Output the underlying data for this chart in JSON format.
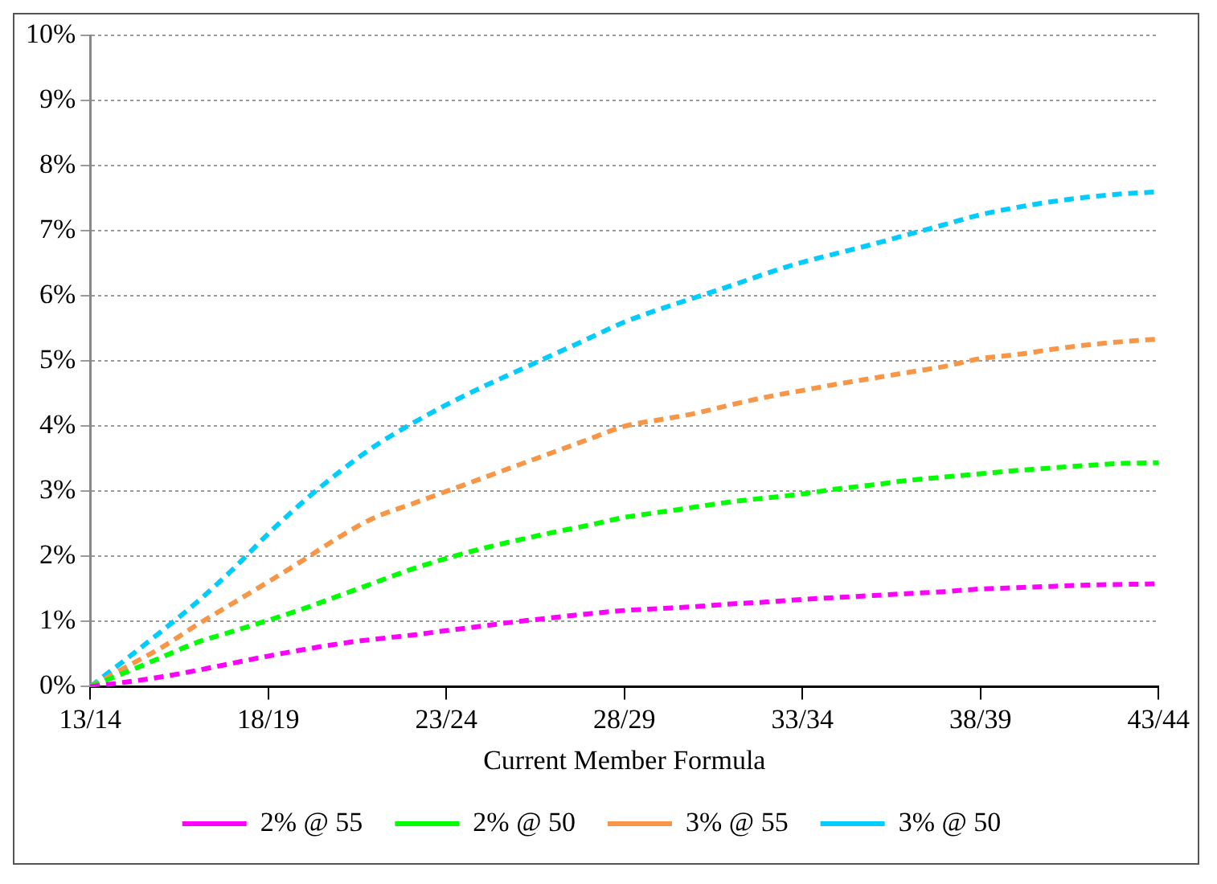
{
  "chart_data": {
    "type": "line",
    "xlabel": "Current Member Formula",
    "categories": [
      "13/14",
      null,
      null,
      null,
      null,
      "18/19",
      null,
      null,
      null,
      null,
      "23/24",
      null,
      null,
      null,
      null,
      "28/29",
      null,
      null,
      null,
      null,
      "33/34",
      null,
      null,
      null,
      null,
      "38/39",
      null,
      null,
      null,
      null,
      "43/44"
    ],
    "ylim": [
      0,
      10
    ],
    "yticks": [
      {
        "value": 0,
        "label": "0%"
      },
      {
        "value": 1,
        "label": "1%"
      },
      {
        "value": 2,
        "label": "2%"
      },
      {
        "value": 3,
        "label": "3%"
      },
      {
        "value": 4,
        "label": "4%"
      },
      {
        "value": 5,
        "label": "5%"
      },
      {
        "value": 6,
        "label": "6%"
      },
      {
        "value": 7,
        "label": "7%"
      },
      {
        "value": 8,
        "label": "8%"
      },
      {
        "value": 9,
        "label": "9%"
      },
      {
        "value": 10,
        "label": "10%"
      }
    ],
    "series": [
      {
        "name": "2% @ 55",
        "color": "#ff00ff",
        "values": [
          0,
          0.07,
          0.15,
          0.25,
          0.36,
          0.47,
          0.57,
          0.66,
          0.73,
          0.79,
          0.86,
          0.93,
          1.0,
          1.06,
          1.12,
          1.17,
          1.2,
          1.23,
          1.27,
          1.3,
          1.34,
          1.37,
          1.4,
          1.43,
          1.46,
          1.5,
          1.52,
          1.54,
          1.56,
          1.57,
          1.58
        ]
      },
      {
        "name": "2% @ 50",
        "color": "#00ff00",
        "values": [
          0,
          0.22,
          0.45,
          0.68,
          0.85,
          1.02,
          1.2,
          1.4,
          1.6,
          1.8,
          1.97,
          2.12,
          2.25,
          2.37,
          2.48,
          2.6,
          2.68,
          2.76,
          2.84,
          2.9,
          2.96,
          3.04,
          3.1,
          3.17,
          3.22,
          3.27,
          3.32,
          3.36,
          3.4,
          3.43,
          3.44
        ]
      },
      {
        "name": "3% @ 55",
        "color": "#f79646",
        "values": [
          0,
          0.3,
          0.6,
          0.95,
          1.28,
          1.61,
          1.95,
          2.3,
          2.6,
          2.8,
          3.0,
          3.2,
          3.4,
          3.6,
          3.8,
          4.0,
          4.1,
          4.2,
          4.33,
          4.45,
          4.55,
          4.65,
          4.74,
          4.83,
          4.92,
          5.04,
          5.1,
          5.18,
          5.25,
          5.3,
          5.34
        ]
      },
      {
        "name": "3% @ 50",
        "color": "#00ccff",
        "values": [
          0,
          0.42,
          0.85,
          1.3,
          1.8,
          2.35,
          2.85,
          3.3,
          3.7,
          4.03,
          4.33,
          4.6,
          4.85,
          5.1,
          5.35,
          5.6,
          5.8,
          5.98,
          6.16,
          6.35,
          6.52,
          6.66,
          6.8,
          6.95,
          7.1,
          7.25,
          7.36,
          7.45,
          7.52,
          7.57,
          7.6
        ]
      }
    ],
    "grid": "y",
    "legend": "bottom",
    "marker": "none",
    "line_style": "dashed"
  }
}
